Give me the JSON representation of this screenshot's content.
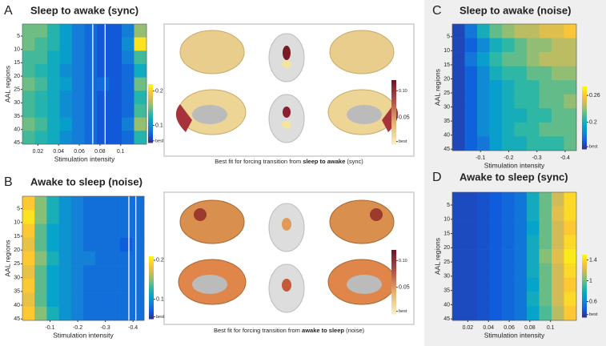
{
  "chart_data": [
    {
      "type": "heatmap",
      "panel": "A",
      "title": "Sleep to awake (sync)",
      "xlabel": "Stimulation intensity",
      "ylabel": "AAL regions",
      "xlim": [
        0.005,
        0.125
      ],
      "xticks": [
        0.02,
        0.04,
        0.06,
        0.08,
        0.1
      ],
      "ylim": [
        0.5,
        45.5
      ],
      "yticks": [
        5,
        10,
        15,
        20,
        25,
        30,
        35,
        40,
        45
      ],
      "x": [
        0.011,
        0.023,
        0.035,
        0.047,
        0.059,
        0.071,
        0.083,
        0.095,
        0.107,
        0.119
      ],
      "y": [
        3,
        8,
        13,
        18,
        23,
        28,
        33,
        38,
        43
      ],
      "values": [
        [
          0.15,
          0.15,
          0.13,
          0.11,
          0.09,
          0.08,
          0.07,
          0.07,
          0.09,
          0.16
        ],
        [
          0.15,
          0.14,
          0.13,
          0.11,
          0.09,
          0.08,
          0.07,
          0.07,
          0.1,
          0.21
        ],
        [
          0.14,
          0.14,
          0.12,
          0.11,
          0.09,
          0.08,
          0.07,
          0.07,
          0.09,
          0.14
        ],
        [
          0.14,
          0.13,
          0.12,
          0.1,
          0.09,
          0.08,
          0.07,
          0.07,
          0.08,
          0.12
        ],
        [
          0.15,
          0.14,
          0.12,
          0.11,
          0.09,
          0.08,
          0.08,
          0.07,
          0.08,
          0.15
        ],
        [
          0.14,
          0.13,
          0.12,
          0.1,
          0.09,
          0.08,
          0.07,
          0.07,
          0.08,
          0.13
        ],
        [
          0.14,
          0.13,
          0.12,
          0.1,
          0.09,
          0.08,
          0.07,
          0.07,
          0.08,
          0.14
        ],
        [
          0.15,
          0.14,
          0.12,
          0.11,
          0.09,
          0.08,
          0.07,
          0.07,
          0.09,
          0.16
        ],
        [
          0.14,
          0.13,
          0.12,
          0.1,
          0.09,
          0.08,
          0.07,
          0.07,
          0.08,
          0.13
        ]
      ],
      "clim": [
        0.05,
        0.22
      ],
      "cticks": [
        0.2,
        0.1,
        {
          "value": 0.055,
          "label": "best"
        }
      ],
      "highlight": [
        0.073,
        0.085
      ]
    },
    {
      "type": "heatmap",
      "panel": "B",
      "title": "Awake to sleep (noise)",
      "xlabel": "Stimulation intensity",
      "ylabel": "AAL regions",
      "xlim": [
        0,
        -0.44
      ],
      "xticks": [
        -0.1,
        -0.2,
        -0.3,
        -0.4
      ],
      "ylim": [
        0.5,
        45.5
      ],
      "yticks": [
        5,
        10,
        15,
        20,
        25,
        30,
        35,
        40,
        45
      ],
      "x": [
        -0.022,
        -0.066,
        -0.11,
        -0.154,
        -0.198,
        -0.242,
        -0.286,
        -0.33,
        -0.374,
        -0.418
      ],
      "y": [
        3,
        8,
        13,
        18,
        23,
        28,
        33,
        38,
        43
      ],
      "values": [
        [
          0.19,
          0.15,
          0.12,
          0.1,
          0.09,
          0.08,
          0.08,
          0.08,
          0.08,
          0.08
        ],
        [
          0.2,
          0.15,
          0.12,
          0.1,
          0.09,
          0.08,
          0.08,
          0.08,
          0.08,
          0.08
        ],
        [
          0.19,
          0.14,
          0.11,
          0.1,
          0.09,
          0.08,
          0.08,
          0.08,
          0.08,
          0.08
        ],
        [
          0.18,
          0.14,
          0.11,
          0.1,
          0.09,
          0.08,
          0.08,
          0.08,
          0.07,
          0.08
        ],
        [
          0.19,
          0.15,
          0.12,
          0.1,
          0.09,
          0.09,
          0.08,
          0.08,
          0.08,
          0.08
        ],
        [
          0.18,
          0.14,
          0.11,
          0.1,
          0.09,
          0.08,
          0.08,
          0.08,
          0.08,
          0.08
        ],
        [
          0.19,
          0.14,
          0.11,
          0.1,
          0.09,
          0.08,
          0.08,
          0.08,
          0.08,
          0.08
        ],
        [
          0.18,
          0.14,
          0.11,
          0.1,
          0.09,
          0.08,
          0.08,
          0.08,
          0.08,
          0.08
        ],
        [
          0.19,
          0.15,
          0.12,
          0.1,
          0.09,
          0.08,
          0.08,
          0.08,
          0.08,
          0.08
        ]
      ],
      "clim": [
        0.05,
        0.21
      ],
      "cticks": [
        0.2,
        0.1,
        {
          "value": 0.055,
          "label": "best"
        }
      ],
      "highlight": [
        -0.385,
        -0.41
      ]
    },
    {
      "type": "heatmap",
      "panel": "C",
      "title": "Sleep to awake (noise)",
      "xlabel": "Stimulation intensity",
      "ylabel": "AAL regions",
      "xlim": [
        0,
        -0.44
      ],
      "xticks": [
        -0.1,
        -0.2,
        -0.3,
        -0.4
      ],
      "ylim": [
        0.5,
        45.5
      ],
      "yticks": [
        5,
        10,
        15,
        20,
        25,
        30,
        35,
        40,
        45
      ],
      "x": [
        -0.022,
        -0.066,
        -0.11,
        -0.154,
        -0.198,
        -0.242,
        -0.286,
        -0.33,
        -0.374,
        -0.418
      ],
      "y": [
        3,
        8,
        13,
        18,
        23,
        28,
        33,
        38,
        43
      ],
      "values": [
        [
          0.15,
          0.17,
          0.2,
          0.22,
          0.23,
          0.24,
          0.24,
          0.25,
          0.25,
          0.26
        ],
        [
          0.15,
          0.16,
          0.18,
          0.2,
          0.21,
          0.22,
          0.23,
          0.23,
          0.24,
          0.24
        ],
        [
          0.15,
          0.17,
          0.19,
          0.21,
          0.22,
          0.22,
          0.23,
          0.24,
          0.24,
          0.24
        ],
        [
          0.15,
          0.16,
          0.18,
          0.2,
          0.21,
          0.21,
          0.22,
          0.22,
          0.23,
          0.23
        ],
        [
          0.15,
          0.16,
          0.18,
          0.19,
          0.2,
          0.21,
          0.21,
          0.22,
          0.22,
          0.22
        ],
        [
          0.15,
          0.16,
          0.18,
          0.19,
          0.2,
          0.21,
          0.21,
          0.22,
          0.22,
          0.23
        ],
        [
          0.15,
          0.16,
          0.18,
          0.19,
          0.2,
          0.2,
          0.21,
          0.21,
          0.22,
          0.22
        ],
        [
          0.15,
          0.16,
          0.18,
          0.19,
          0.2,
          0.21,
          0.21,
          0.22,
          0.22,
          0.22
        ],
        [
          0.15,
          0.16,
          0.17,
          0.19,
          0.2,
          0.2,
          0.21,
          0.21,
          0.21,
          0.22
        ]
      ],
      "clim": [
        0.14,
        0.28
      ],
      "cticks": [
        0.26,
        0.2,
        {
          "value": 0.145,
          "label": "best"
        }
      ]
    },
    {
      "type": "heatmap",
      "panel": "D",
      "title": "Awake to sleep (sync)",
      "xlabel": "Stimulation intensity",
      "ylabel": "AAL regions",
      "xlim": [
        0.005,
        0.125
      ],
      "xticks": [
        0.02,
        0.04,
        0.06,
        0.08,
        0.1
      ],
      "ylim": [
        0.5,
        45.5
      ],
      "yticks": [
        5,
        10,
        15,
        20,
        25,
        30,
        35,
        40,
        45
      ],
      "x": [
        0.011,
        0.023,
        0.035,
        0.047,
        0.059,
        0.071,
        0.083,
        0.095,
        0.107,
        0.119
      ],
      "y": [
        3,
        8,
        13,
        18,
        23,
        28,
        33,
        38,
        43
      ],
      "values": [
        [
          0.4,
          0.4,
          0.42,
          0.45,
          0.5,
          0.55,
          0.8,
          1.0,
          1.2,
          1.4
        ],
        [
          0.4,
          0.4,
          0.42,
          0.45,
          0.5,
          0.55,
          0.8,
          1.0,
          1.25,
          1.4
        ],
        [
          0.4,
          0.4,
          0.42,
          0.45,
          0.5,
          0.55,
          0.75,
          1.0,
          1.2,
          1.35
        ],
        [
          0.4,
          0.4,
          0.42,
          0.45,
          0.5,
          0.55,
          0.8,
          1.0,
          1.2,
          1.4
        ],
        [
          0.4,
          0.4,
          0.42,
          0.45,
          0.5,
          0.55,
          0.8,
          1.05,
          1.25,
          1.45
        ],
        [
          0.4,
          0.4,
          0.42,
          0.45,
          0.5,
          0.55,
          0.8,
          1.0,
          1.2,
          1.4
        ],
        [
          0.4,
          0.4,
          0.42,
          0.45,
          0.5,
          0.55,
          0.75,
          1.0,
          1.2,
          1.35
        ],
        [
          0.4,
          0.4,
          0.42,
          0.45,
          0.5,
          0.55,
          0.8,
          1.0,
          1.2,
          1.4
        ],
        [
          0.4,
          0.4,
          0.42,
          0.45,
          0.5,
          0.55,
          0.75,
          0.95,
          1.15,
          1.35
        ]
      ],
      "clim": [
        0.3,
        1.5
      ],
      "cticks": [
        1.4,
        1,
        0.6,
        {
          "value": 0.35,
          "label": "best"
        }
      ]
    }
  ],
  "colormap": [
    "#352a87",
    "#0f5cdd",
    "#1481d6",
    "#06a4ca",
    "#2eb7a4",
    "#87bf77",
    "#d1bb59",
    "#fec832",
    "#f9fb0e"
  ],
  "brain_panels": [
    {
      "caption": [
        "Best fit for forcing transition from",
        "sleep to awake",
        "(sync)"
      ],
      "cticks": [
        {
          "value": 0.1,
          "label": "0.10"
        },
        0.05,
        {
          "value": 0.005,
          "label": "best"
        }
      ],
      "clim": [
        0,
        0.12
      ]
    },
    {
      "caption": [
        "Best fit for forcing transition from",
        "awake to sleep",
        "(noise)"
      ],
      "cticks": [
        {
          "value": 0.1,
          "label": "0.10"
        },
        0.05,
        {
          "value": 0.005,
          "label": "best"
        }
      ],
      "clim": [
        0,
        0.12
      ]
    }
  ]
}
